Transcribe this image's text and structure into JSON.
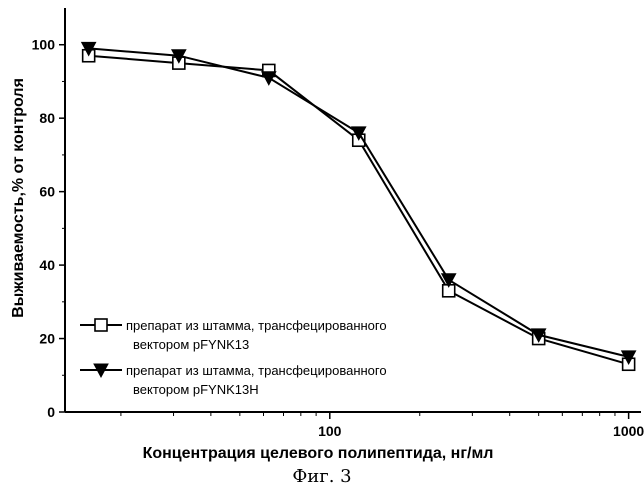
{
  "figure_caption": "Фиг. 3",
  "chart_data": {
    "type": "line",
    "xscale": "log",
    "xlabel": "Концентрация целевого полипептида, нг/мл",
    "ylabel": "Выживаемость,% от контроля",
    "xlim": [
      13,
      1100
    ],
    "ylim": [
      0,
      110
    ],
    "x_major_ticks": [
      100,
      1000
    ],
    "y_ticks": [
      0,
      20,
      40,
      60,
      80,
      100
    ],
    "grid": false,
    "legend_position": "bottom-left",
    "series": [
      {
        "name": "препарат из штамма, трансфецированного вектором pFYNK13",
        "legend_lines": [
          "препарат из штамма, трансфецированного",
          "вектором pFYNK13"
        ],
        "marker": "open-square",
        "x": [
          15.6,
          31.25,
          62.5,
          125,
          250,
          500,
          1000
        ],
        "y": [
          97,
          95,
          93,
          74,
          33,
          20,
          13
        ]
      },
      {
        "name": "препарат из штамма, трансфецированного вектором pFYNK13H",
        "legend_lines": [
          "препарат из штамма, трансфецированного",
          "вектором pFYNK13H"
        ],
        "marker": "filled-triangle-down",
        "x": [
          15.6,
          31.25,
          62.5,
          125,
          250,
          500,
          1000
        ],
        "y": [
          99,
          97,
          91,
          76,
          36,
          21,
          15
        ]
      }
    ]
  }
}
